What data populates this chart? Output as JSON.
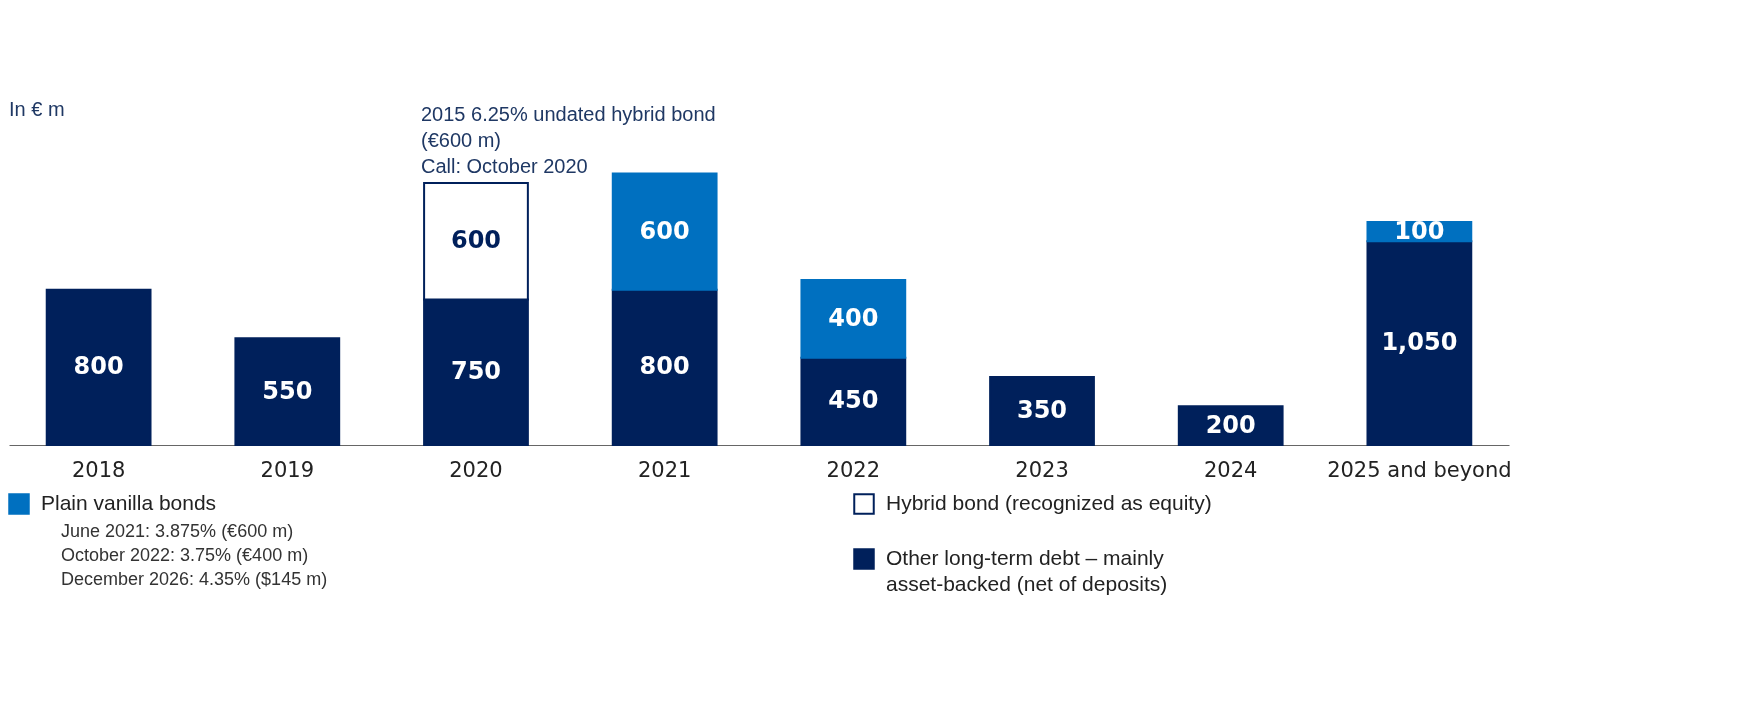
{
  "chart_data": {
    "type": "bar",
    "stacked": true,
    "legend": "bottom",
    "grid": false,
    "categories": [
      "2018",
      "2019",
      "2020",
      "2021",
      "2022",
      "2023",
      "2024",
      "2025 and beyond"
    ],
    "series": [
      {
        "name": "Other long-term debt – mainly asset-backed (net of deposits)",
        "color": "#00205b",
        "values": [
          800,
          550,
          750,
          800,
          450,
          350,
          200,
          1050
        ],
        "value_labels": [
          "800",
          "550",
          "750",
          "800",
          "450",
          "350",
          "200",
          "1,050"
        ]
      },
      {
        "name": "Plain vanilla bonds",
        "color": "#0070c0",
        "values": [
          null,
          null,
          null,
          600,
          400,
          null,
          null,
          100
        ],
        "value_labels": [
          null,
          null,
          null,
          "600",
          "400",
          null,
          null,
          "100"
        ]
      },
      {
        "name": "Hybrid bond (recognized as equity)",
        "color": "#ffffff",
        "values": [
          null,
          null,
          600,
          null,
          null,
          null,
          null,
          null
        ],
        "value_labels": [
          null,
          null,
          "600",
          null,
          null,
          null,
          null,
          null
        ]
      }
    ],
    "annotations": [
      "In € m",
      {
        "text": "2015 6.25% undated hybrid bond\n(€600 m)\nCall: October 2020",
        "x": "2020",
        "y": 1350
      },
      "June 2021: 3.875% (€600 m)",
      "October 2022: 3.75% (€400 m)",
      "December 2026: 4.35% ($145 m)"
    ]
  }
}
